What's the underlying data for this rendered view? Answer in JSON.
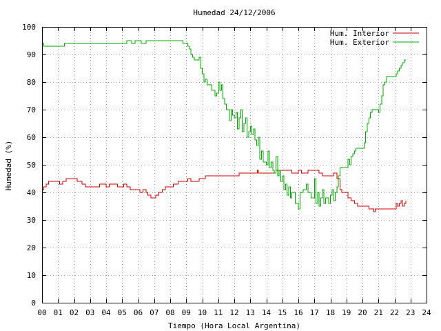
{
  "chart_data": {
    "type": "line",
    "title": "Humedad 24/12/2006",
    "xlabel": "Tiempo (Hora Local Argentina)",
    "ylabel": "Humedad (%)",
    "xlim": [
      0,
      24
    ],
    "ylim": [
      0,
      100
    ],
    "x_tick_labels": [
      "00",
      "01",
      "02",
      "03",
      "04",
      "05",
      "06",
      "07",
      "08",
      "09",
      "10",
      "11",
      "12",
      "13",
      "14",
      "15",
      "16",
      "17",
      "18",
      "19",
      "20",
      "21",
      "22",
      "23",
      "24"
    ],
    "y_tick_labels": [
      "0",
      "10",
      "20",
      "30",
      "40",
      "50",
      "60",
      "70",
      "80",
      "90",
      "100"
    ],
    "grid": true,
    "legend_position": "top-right",
    "series": [
      {
        "name": "Hum. Interior",
        "color": "#cc0000",
        "points": [
          [
            0.0,
            41
          ],
          [
            0.1,
            42
          ],
          [
            0.25,
            43
          ],
          [
            0.4,
            44
          ],
          [
            1.0,
            44
          ],
          [
            1.1,
            43
          ],
          [
            1.3,
            44
          ],
          [
            1.5,
            44
          ],
          [
            1.5,
            45
          ],
          [
            2.1,
            45
          ],
          [
            2.2,
            44
          ],
          [
            2.5,
            43
          ],
          [
            2.7,
            42
          ],
          [
            3.5,
            42
          ],
          [
            3.6,
            43
          ],
          [
            3.9,
            43
          ],
          [
            4.0,
            42
          ],
          [
            4.2,
            43
          ],
          [
            4.5,
            43
          ],
          [
            4.7,
            42
          ],
          [
            5.0,
            42
          ],
          [
            5.1,
            43
          ],
          [
            5.3,
            42
          ],
          [
            5.5,
            41
          ],
          [
            6.0,
            41
          ],
          [
            6.1,
            40
          ],
          [
            6.3,
            41
          ],
          [
            6.5,
            40
          ],
          [
            6.6,
            39
          ],
          [
            6.8,
            38
          ],
          [
            7.0,
            38
          ],
          [
            7.1,
            39
          ],
          [
            7.3,
            40
          ],
          [
            7.5,
            41
          ],
          [
            7.7,
            42
          ],
          [
            8.0,
            42
          ],
          [
            8.2,
            43
          ],
          [
            8.5,
            44
          ],
          [
            9.0,
            44
          ],
          [
            9.1,
            45
          ],
          [
            9.3,
            44
          ],
          [
            9.7,
            44
          ],
          [
            9.8,
            45
          ],
          [
            10.0,
            45
          ],
          [
            10.2,
            46
          ],
          [
            11.0,
            46
          ],
          [
            12.0,
            46
          ],
          [
            12.3,
            47
          ],
          [
            13.0,
            47
          ],
          [
            13.4,
            47
          ],
          [
            13.45,
            48
          ],
          [
            13.5,
            47
          ],
          [
            14.0,
            47
          ],
          [
            14.5,
            47
          ],
          [
            14.6,
            48
          ],
          [
            15.0,
            48
          ],
          [
            15.5,
            48
          ],
          [
            15.6,
            47
          ],
          [
            15.9,
            47
          ],
          [
            16.0,
            48
          ],
          [
            16.2,
            47
          ],
          [
            16.5,
            47
          ],
          [
            16.6,
            48
          ],
          [
            17.0,
            48
          ],
          [
            17.3,
            47
          ],
          [
            17.5,
            46
          ],
          [
            18.0,
            46
          ],
          [
            18.2,
            47
          ],
          [
            18.4,
            45
          ],
          [
            18.6,
            41
          ],
          [
            18.7,
            40
          ],
          [
            19.0,
            40
          ],
          [
            19.1,
            38
          ],
          [
            19.3,
            37
          ],
          [
            19.5,
            36
          ],
          [
            19.7,
            35
          ],
          [
            20.0,
            35
          ],
          [
            20.3,
            35
          ],
          [
            20.4,
            34
          ],
          [
            20.6,
            34
          ],
          [
            20.7,
            33
          ],
          [
            20.8,
            34
          ],
          [
            21.5,
            34
          ],
          [
            22.0,
            34
          ],
          [
            22.1,
            36
          ],
          [
            22.2,
            35
          ],
          [
            22.3,
            36
          ],
          [
            22.4,
            37
          ],
          [
            22.5,
            35
          ],
          [
            22.6,
            36
          ],
          [
            22.7,
            37
          ]
        ]
      },
      {
        "name": "Hum. Exterior",
        "color": "#00aa00",
        "points": [
          [
            0.0,
            94
          ],
          [
            0.1,
            93
          ],
          [
            1.3,
            93
          ],
          [
            1.4,
            94
          ],
          [
            5.0,
            94
          ],
          [
            5.3,
            95
          ],
          [
            5.6,
            94
          ],
          [
            5.8,
            95
          ],
          [
            6.2,
            94
          ],
          [
            6.5,
            95
          ],
          [
            8.5,
            95
          ],
          [
            8.8,
            94
          ],
          [
            9.0,
            94
          ],
          [
            9.1,
            93
          ],
          [
            9.2,
            92
          ],
          [
            9.3,
            90
          ],
          [
            9.4,
            89
          ],
          [
            9.5,
            88
          ],
          [
            9.7,
            88
          ],
          [
            9.8,
            89
          ],
          [
            9.9,
            85
          ],
          [
            10.0,
            83
          ],
          [
            10.1,
            80
          ],
          [
            10.2,
            81
          ],
          [
            10.3,
            79
          ],
          [
            10.5,
            79
          ],
          [
            10.6,
            77
          ],
          [
            10.8,
            75
          ],
          [
            10.9,
            76
          ],
          [
            11.0,
            80
          ],
          [
            11.1,
            77
          ],
          [
            11.2,
            79
          ],
          [
            11.3,
            74
          ],
          [
            11.4,
            72
          ],
          [
            11.5,
            70
          ],
          [
            11.7,
            66
          ],
          [
            11.8,
            70
          ],
          [
            11.9,
            68
          ],
          [
            12.0,
            67
          ],
          [
            12.1,
            69
          ],
          [
            12.2,
            63
          ],
          [
            12.3,
            67
          ],
          [
            12.4,
            70
          ],
          [
            12.5,
            62
          ],
          [
            12.6,
            65
          ],
          [
            12.7,
            67
          ],
          [
            12.8,
            60
          ],
          [
            12.9,
            62
          ],
          [
            13.0,
            64
          ],
          [
            13.1,
            61
          ],
          [
            13.2,
            63
          ],
          [
            13.3,
            59
          ],
          [
            13.4,
            57
          ],
          [
            13.5,
            60
          ],
          [
            13.6,
            52
          ],
          [
            13.7,
            55
          ],
          [
            13.8,
            51
          ],
          [
            13.9,
            51
          ],
          [
            14.0,
            50
          ],
          [
            14.1,
            55
          ],
          [
            14.2,
            49
          ],
          [
            14.3,
            51
          ],
          [
            14.4,
            48
          ],
          [
            14.5,
            47
          ],
          [
            14.6,
            53
          ],
          [
            14.7,
            46
          ],
          [
            14.8,
            48
          ],
          [
            14.9,
            44
          ],
          [
            15.0,
            46
          ],
          [
            15.1,
            41
          ],
          [
            15.2,
            43
          ],
          [
            15.3,
            39
          ],
          [
            15.4,
            42
          ],
          [
            15.5,
            38
          ],
          [
            15.6,
            40
          ],
          [
            15.8,
            36
          ],
          [
            16.0,
            34
          ],
          [
            16.1,
            40
          ],
          [
            16.3,
            41
          ],
          [
            16.5,
            43
          ],
          [
            16.6,
            40
          ],
          [
            16.8,
            38
          ],
          [
            17.0,
            45
          ],
          [
            17.1,
            36
          ],
          [
            17.2,
            40
          ],
          [
            17.3,
            35
          ],
          [
            17.4,
            38
          ],
          [
            17.5,
            41
          ],
          [
            17.6,
            36
          ],
          [
            17.7,
            38
          ],
          [
            17.9,
            36
          ],
          [
            18.0,
            39
          ],
          [
            18.1,
            41
          ],
          [
            18.2,
            37
          ],
          [
            18.3,
            40
          ],
          [
            18.4,
            42
          ],
          [
            18.5,
            46
          ],
          [
            18.6,
            49
          ],
          [
            18.8,
            49
          ],
          [
            19.0,
            49
          ],
          [
            19.1,
            52
          ],
          [
            19.2,
            50
          ],
          [
            19.3,
            53
          ],
          [
            19.4,
            54
          ],
          [
            19.5,
            55
          ],
          [
            19.6,
            56
          ],
          [
            20.0,
            56
          ],
          [
            20.1,
            58
          ],
          [
            20.2,
            62
          ],
          [
            20.3,
            65
          ],
          [
            20.4,
            67
          ],
          [
            20.5,
            69
          ],
          [
            20.6,
            70
          ],
          [
            21.0,
            69
          ],
          [
            21.1,
            72
          ],
          [
            21.2,
            75
          ],
          [
            21.3,
            79
          ],
          [
            21.4,
            80
          ],
          [
            21.5,
            82
          ],
          [
            22.0,
            82
          ],
          [
            22.1,
            83
          ],
          [
            22.2,
            84
          ],
          [
            22.3,
            85
          ],
          [
            22.4,
            86
          ],
          [
            22.5,
            87
          ],
          [
            22.6,
            88
          ],
          [
            22.7,
            88
          ]
        ]
      }
    ]
  }
}
